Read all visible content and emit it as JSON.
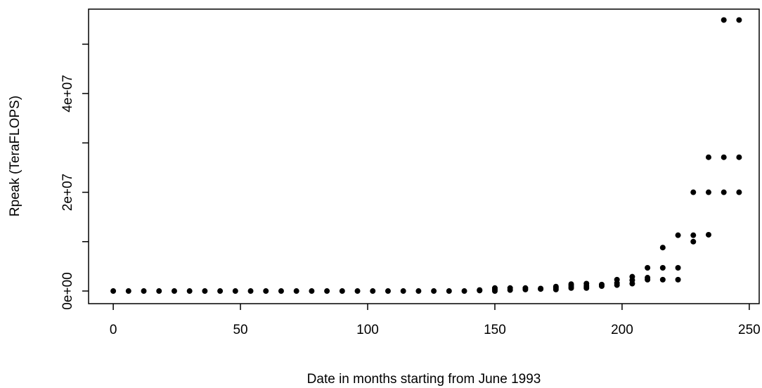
{
  "chart_data": {
    "type": "scatter",
    "xlabel": "Date in months starting from June 1993",
    "ylabel": "Rpeak (TeraFLOPS)",
    "color": "#000000",
    "xlim": [
      -9.7,
      253.9
    ],
    "ylim": [
      -2560000,
      57100000
    ],
    "xticks": [
      0,
      50,
      100,
      150,
      200,
      250
    ],
    "yticks": [
      {
        "value": 0,
        "label": "0e+00"
      },
      {
        "value": 10000000,
        "label": null
      },
      {
        "value": 20000000,
        "label": "2e+07"
      },
      {
        "value": 30000000,
        "label": null
      },
      {
        "value": 40000000,
        "label": "4e+07"
      },
      {
        "value": 50000000,
        "label": null
      }
    ],
    "x": [
      0,
      6,
      12,
      18,
      24,
      30,
      36,
      42,
      48,
      54,
      60,
      66,
      72,
      78,
      84,
      90,
      96,
      102,
      108,
      114,
      120,
      126,
      132,
      138,
      144,
      144,
      150,
      150,
      150,
      156,
      156,
      162,
      162,
      168,
      168,
      174,
      174,
      174,
      180,
      180,
      180,
      186,
      186,
      186,
      192,
      192,
      198,
      198,
      198,
      204,
      204,
      204,
      210,
      210,
      210,
      216,
      216,
      216,
      222,
      222,
      222,
      228,
      228,
      228,
      234,
      234,
      234,
      240,
      240,
      240,
      246,
      246,
      246
    ],
    "values": [
      0,
      0,
      0,
      0,
      0,
      0,
      0,
      0,
      0,
      0,
      0,
      0,
      0,
      0,
      0,
      0,
      0,
      0,
      0,
      0,
      0,
      0,
      0,
      0,
      100000,
      200000,
      0,
      300000,
      600000,
      200000,
      600000,
      300000,
      600000,
      400000,
      500000,
      300000,
      600000,
      900000,
      600000,
      1000000,
      1400000,
      600000,
      1000000,
      1500000,
      1000000,
      1300000,
      1200000,
      1600000,
      2300000,
      1500000,
      2200000,
      2900000,
      2300000,
      2700000,
      4700000,
      2300000,
      4700000,
      8800000,
      2300000,
      4700000,
      11300000,
      10000000,
      11300000,
      20000000,
      11400000,
      20000000,
      27100000,
      20000000,
      27100000,
      54900000,
      20000000,
      27100000,
      54900000
    ]
  }
}
